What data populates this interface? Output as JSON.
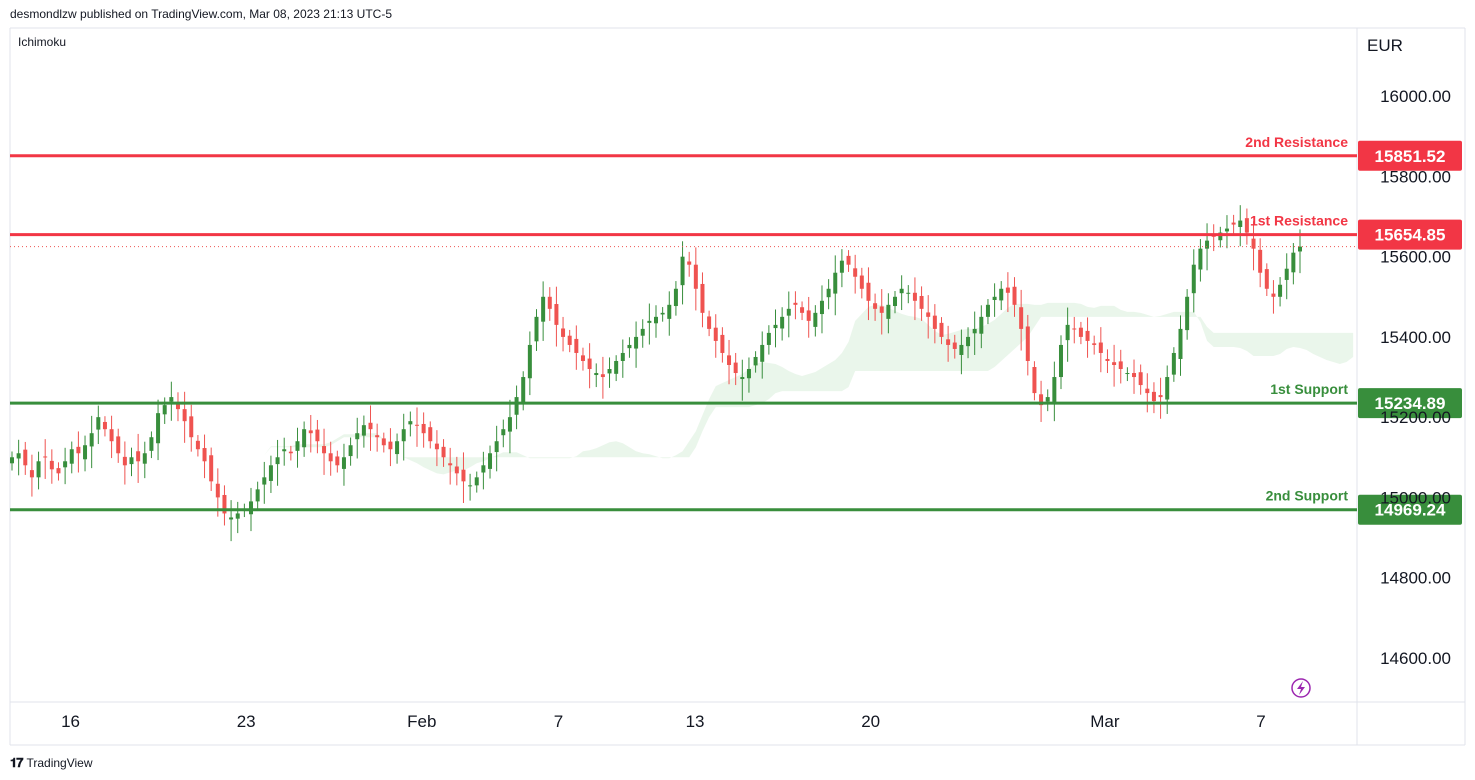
{
  "header": {
    "publisher": "desmondlzw published on TradingView.com, Mar 08, 2023 21:13 UTC-5"
  },
  "indicator": {
    "name": "Ichimoku"
  },
  "axis": {
    "currency": "EUR"
  },
  "footer": {
    "brand": "TradingView"
  },
  "colors": {
    "bull": "#388e3c",
    "bear": "#ef5350",
    "resistance": "#f23645",
    "support": "#388e3c",
    "cloud_bull": "#e8f5e9",
    "cloud_bear": "#fde8e8"
  },
  "chart_data": {
    "type": "candlestick",
    "y_axis": {
      "ticks": [
        16000,
        15800,
        15600,
        15400,
        15200,
        15000,
        14800,
        14600
      ],
      "tick_labels": [
        "16000.00",
        "15800.00",
        "15600.00",
        "15400.00",
        "15200.00",
        "15000.00",
        "14800.00",
        "14600.00"
      ],
      "range": [
        14490,
        16170
      ]
    },
    "x_axis": {
      "labels": [
        "16",
        "23",
        "Feb",
        "7",
        "13",
        "20",
        "Mar",
        "7"
      ],
      "dates": [
        "2023-01-16",
        "2023-01-23",
        "2023-02-01",
        "2023-02-07",
        "2023-02-13",
        "2023-02-20",
        "2023-03-01",
        "2023-03-07"
      ]
    },
    "levels": [
      {
        "label": "2nd Resistance",
        "value": 15851.52,
        "value_label": "15851.52",
        "kind": "resistance"
      },
      {
        "label": "1st Resistance",
        "value": 15654.85,
        "value_label": "15654.85",
        "kind": "resistance"
      },
      {
        "label": "1st Support",
        "value": 15234.89,
        "value_label": "15234.89",
        "kind": "support"
      },
      {
        "label": "2nd Support",
        "value": 14969.24,
        "value_label": "14969.24",
        "kind": "support"
      }
    ],
    "last_price": 15625,
    "series": [
      {
        "values": [
          15100,
          15110,
          15080,
          15050,
          15090,
          15100,
          15070,
          15060,
          15090,
          15120,
          15110,
          15130,
          15160,
          15200,
          15170,
          15140,
          15110,
          15080,
          15100,
          15090,
          15110,
          15150,
          15210,
          15230,
          15250,
          15220,
          15190,
          15150,
          15120,
          15090,
          15040,
          15000,
          14960,
          14950,
          14960,
          14970,
          14990,
          15020,
          15050,
          15080,
          15100,
          15120,
          15110,
          15140,
          15170,
          15160,
          15140,
          15110,
          15090,
          15080,
          15100,
          15130,
          15160,
          15180,
          15170,
          15150,
          15130,
          15120,
          15140,
          15170,
          15190,
          15180,
          15160,
          15140,
          15120,
          15100,
          15080,
          15060,
          15040,
          15030,
          15050,
          15080,
          15110,
          15140,
          15170,
          15200,
          15250,
          15300,
          15380,
          15450,
          15500,
          15470,
          15430,
          15400,
          15380,
          15360,
          15340,
          15320,
          15310,
          15300,
          15320,
          15340,
          15360,
          15380,
          15400,
          15420,
          15440,
          15450,
          15460,
          15480,
          15520,
          15600,
          15580,
          15520,
          15460,
          15420,
          15390,
          15360,
          15330,
          15310,
          15300,
          15320,
          15350,
          15380,
          15410,
          15430,
          15450,
          15470,
          15480,
          15460,
          15440,
          15460,
          15490,
          15520,
          15560,
          15590,
          15580,
          15550,
          15520,
          15490,
          15470,
          15460,
          15480,
          15500,
          15520,
          15510,
          15490,
          15470,
          15450,
          15420,
          15400,
          15380,
          15370,
          15380,
          15400,
          15420,
          15450,
          15480,
          15500,
          15520,
          15510,
          15480,
          15420,
          15340,
          15260,
          15230,
          15250,
          15300,
          15380,
          15430,
          15420,
          15400,
          15390,
          15380,
          15360,
          15340,
          15330,
          15320,
          15310,
          15300,
          15280,
          15260,
          15240,
          15250,
          15300,
          15360,
          15420,
          15500,
          15580,
          15620,
          15640,
          15650,
          15660,
          15670,
          15680,
          15690,
          15660,
          15620,
          15560,
          15520,
          15500,
          15530,
          15570,
          15610,
          15625
        ]
      }
    ]
  }
}
